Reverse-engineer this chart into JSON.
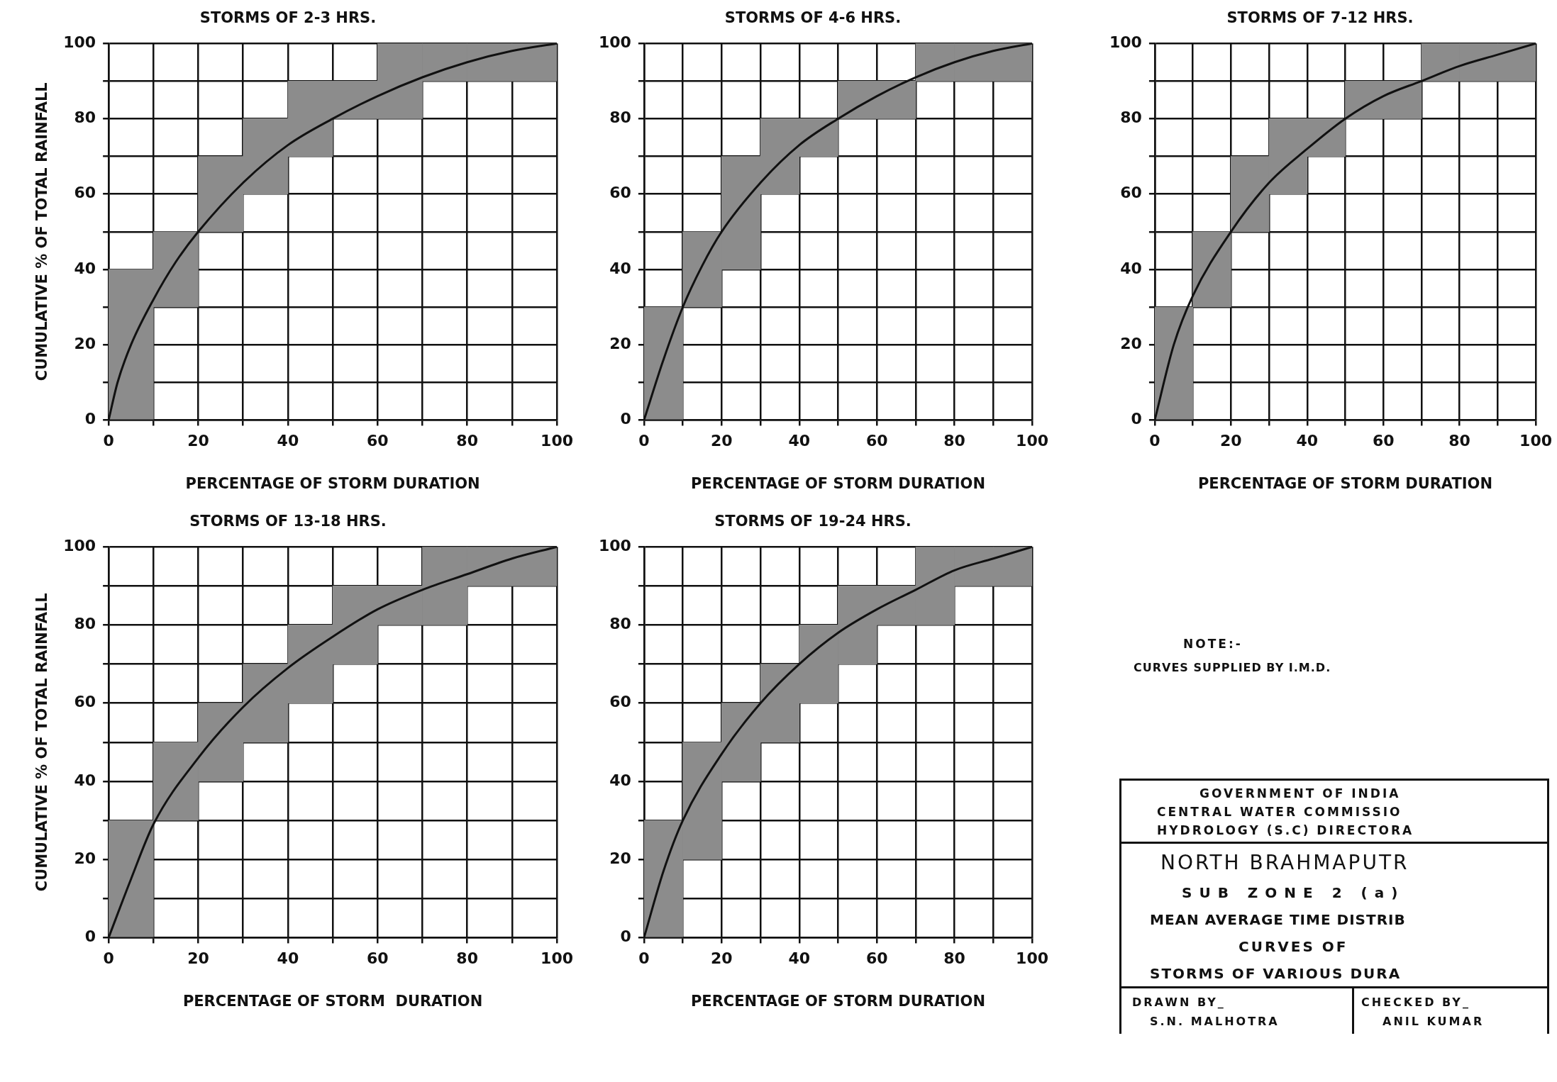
{
  "chart_data": [
    {
      "type": "line",
      "title": "STORMS OF 2-3 HRS.",
      "xlabel": "PERCENTAGE OF STORM DURATION",
      "ylabel": "CUMULATIVE % OF TOTAL RAINFALL",
      "xlim": [
        0,
        100
      ],
      "ylim": [
        0,
        100
      ],
      "xticks": [
        0,
        {
          "value": 10,
          "label": null
        },
        20,
        {
          "value": 30,
          "label": null
        },
        40,
        {
          "value": 50,
          "label": null
        },
        60,
        {
          "value": 70,
          "label": null
        },
        80,
        {
          "value": 90,
          "label": null
        },
        100
      ],
      "yticks": [
        0,
        {
          "value": 10,
          "label": null
        },
        20,
        {
          "value": 30,
          "label": null
        },
        40,
        {
          "value": 50,
          "label": null
        },
        60,
        {
          "value": 70,
          "label": null
        },
        80,
        {
          "value": 90,
          "label": null
        },
        100
      ],
      "grid": true,
      "series": [
        {
          "type": "bar",
          "color": "#8c8c8c",
          "x": [
            5,
            15,
            25,
            35,
            45,
            55,
            65,
            75,
            85,
            95
          ],
          "base": [
            0,
            30,
            50,
            60,
            70,
            80,
            80,
            90,
            90,
            90
          ],
          "values": [
            40,
            20,
            20,
            20,
            20,
            10,
            20,
            10,
            10,
            10
          ]
        },
        {
          "type": "line",
          "color": "#111111",
          "x": [
            0,
            2,
            5,
            10,
            15,
            20,
            30,
            40,
            50,
            60,
            70,
            80,
            90,
            100
          ],
          "values": [
            0,
            10,
            20,
            32,
            42,
            50,
            63,
            73,
            80,
            86,
            91,
            95,
            98,
            100
          ]
        }
      ]
    },
    {
      "type": "line",
      "title": "STORMS OF 4-6 HRS.",
      "xlabel": "PERCENTAGE OF STORM DURATION",
      "xlim": [
        0,
        100
      ],
      "ylim": [
        0,
        100
      ],
      "xticks": [
        0,
        {
          "value": 10,
          "label": null
        },
        20,
        {
          "value": 30,
          "label": null
        },
        40,
        {
          "value": 50,
          "label": null
        },
        60,
        {
          "value": 70,
          "label": null
        },
        80,
        {
          "value": 90,
          "label": null
        },
        100
      ],
      "yticks": [
        0,
        {
          "value": 10,
          "label": null
        },
        20,
        {
          "value": 30,
          "label": null
        },
        40,
        {
          "value": 50,
          "label": null
        },
        60,
        {
          "value": 70,
          "label": null
        },
        80,
        {
          "value": 90,
          "label": null
        },
        100
      ],
      "grid": true,
      "series": [
        {
          "type": "bar",
          "color": "#8c8c8c",
          "x": [
            5,
            15,
            25,
            35,
            45,
            55,
            65,
            75,
            85,
            95
          ],
          "base": [
            0,
            30,
            40,
            60,
            70,
            80,
            80,
            90,
            90,
            90
          ],
          "values": [
            30,
            20,
            30,
            20,
            10,
            10,
            10,
            10,
            10,
            10
          ]
        },
        {
          "type": "line",
          "color": "#111111",
          "x": [
            0,
            5,
            10,
            15,
            20,
            30,
            40,
            50,
            60,
            70,
            80,
            90,
            100
          ],
          "values": [
            0,
            16,
            30,
            41,
            50,
            63,
            73,
            80,
            86,
            91,
            95,
            98,
            100
          ]
        }
      ]
    },
    {
      "type": "line",
      "title": "STORMS OF 7-12 HRS.",
      "xlabel": "PERCENTAGE OF STORM DURATION",
      "xlim": [
        0,
        100
      ],
      "ylim": [
        0,
        100
      ],
      "xticks": [
        0,
        {
          "value": 10,
          "label": null
        },
        20,
        {
          "value": 30,
          "label": null
        },
        40,
        {
          "value": 50,
          "label": null
        },
        60,
        {
          "value": 70,
          "label": null
        },
        80,
        {
          "value": 90,
          "label": null
        },
        100
      ],
      "yticks": [
        0,
        {
          "value": 10,
          "label": null
        },
        20,
        {
          "value": 30,
          "label": null
        },
        40,
        {
          "value": 50,
          "label": null
        },
        60,
        {
          "value": 70,
          "label": null
        },
        80,
        {
          "value": 90,
          "label": null
        },
        100
      ],
      "grid": true,
      "series": [
        {
          "type": "bar",
          "color": "#8c8c8c",
          "x": [
            5,
            15,
            25,
            35,
            45,
            55,
            65,
            75,
            85,
            95
          ],
          "base": [
            0,
            30,
            50,
            60,
            70,
            80,
            80,
            90,
            90,
            90
          ],
          "values": [
            30,
            20,
            20,
            20,
            10,
            10,
            10,
            10,
            10,
            10
          ]
        },
        {
          "type": "line",
          "color": "#111111",
          "x": [
            0,
            5,
            10,
            20,
            30,
            40,
            50,
            60,
            70,
            80,
            90,
            100
          ],
          "values": [
            0,
            20,
            33,
            50,
            63,
            72,
            80,
            86,
            90,
            94,
            97,
            100
          ]
        }
      ]
    },
    {
      "type": "line",
      "title": "STORMS OF 13-18 HRS.",
      "xlabel": "PERCENTAGE OF STORM  DURATION",
      "ylabel": "CUMULATIVE % OF TOTAL RAINFALL",
      "xlim": [
        0,
        100
      ],
      "ylim": [
        0,
        100
      ],
      "xticks": [
        0,
        {
          "value": 10,
          "label": null
        },
        20,
        {
          "value": 30,
          "label": null
        },
        40,
        {
          "value": 50,
          "label": null
        },
        60,
        {
          "value": 70,
          "label": null
        },
        80,
        {
          "value": 90,
          "label": null
        },
        100
      ],
      "yticks": [
        0,
        {
          "value": 10,
          "label": null
        },
        20,
        {
          "value": 30,
          "label": null
        },
        40,
        {
          "value": 50,
          "label": null
        },
        60,
        {
          "value": 70,
          "label": null
        },
        80,
        {
          "value": 90,
          "label": null
        },
        100
      ],
      "grid": true,
      "series": [
        {
          "type": "bar",
          "color": "#8c8c8c",
          "x": [
            5,
            15,
            25,
            35,
            45,
            55,
            65,
            75,
            85,
            95
          ],
          "base": [
            0,
            30,
            40,
            50,
            60,
            70,
            80,
            80,
            90,
            90
          ],
          "values": [
            30,
            20,
            20,
            20,
            20,
            20,
            10,
            20,
            10,
            10
          ]
        },
        {
          "type": "line",
          "color": "#111111",
          "x": [
            0,
            5,
            10,
            20,
            30,
            40,
            50,
            60,
            70,
            80,
            90,
            100
          ],
          "values": [
            0,
            15,
            29,
            46,
            59,
            69,
            77,
            84,
            89,
            93,
            97,
            100
          ]
        }
      ]
    },
    {
      "type": "line",
      "title": "STORMS OF 19-24 HRS.",
      "xlabel": "PERCENTAGE OF STORM DURATION",
      "xlim": [
        0,
        100
      ],
      "ylim": [
        0,
        100
      ],
      "xticks": [
        0,
        {
          "value": 10,
          "label": null
        },
        20,
        {
          "value": 30,
          "label": null
        },
        40,
        {
          "value": 50,
          "label": null
        },
        60,
        {
          "value": 70,
          "label": null
        },
        80,
        {
          "value": 90,
          "label": null
        },
        100
      ],
      "yticks": [
        0,
        {
          "value": 10,
          "label": null
        },
        20,
        {
          "value": 30,
          "label": null
        },
        40,
        {
          "value": 50,
          "label": null
        },
        60,
        {
          "value": 70,
          "label": null
        },
        80,
        {
          "value": 90,
          "label": null
        },
        100
      ],
      "grid": true,
      "series": [
        {
          "type": "bar",
          "color": "#8c8c8c",
          "x": [
            5,
            15,
            25,
            35,
            45,
            55,
            65,
            75,
            85,
            95
          ],
          "base": [
            0,
            20,
            40,
            50,
            60,
            70,
            80,
            80,
            90,
            90
          ],
          "values": [
            30,
            30,
            20,
            20,
            20,
            20,
            10,
            20,
            10,
            10
          ]
        },
        {
          "type": "line",
          "color": "#111111",
          "x": [
            0,
            5,
            10,
            20,
            30,
            40,
            50,
            60,
            70,
            80,
            90,
            100
          ],
          "values": [
            0,
            17,
            30,
            47,
            60,
            70,
            78,
            84,
            89,
            94,
            97,
            100
          ]
        }
      ]
    },
    {
      "type": "other",
      "annotations": [
        "NOTE:-",
        "CURVES SUPPLIED BY I.M.D.",
        "GOVERNMENT OF INDIA",
        "CENTRAL WATER COMMISSIO",
        "HYDROLOGY (S.C) DIRECTORA",
        "NORTH BRAHMAPUTR",
        "SUB ZONE 2 (a)",
        "MEAN AVERAGE TIME DISTRIB",
        "CURVES OF",
        "STORMS OF VARIOUS DURA",
        "DRAWN BY_",
        "S.N. MALHOTRA",
        "CHECKED BY_",
        "ANIL KUMAR"
      ]
    }
  ]
}
